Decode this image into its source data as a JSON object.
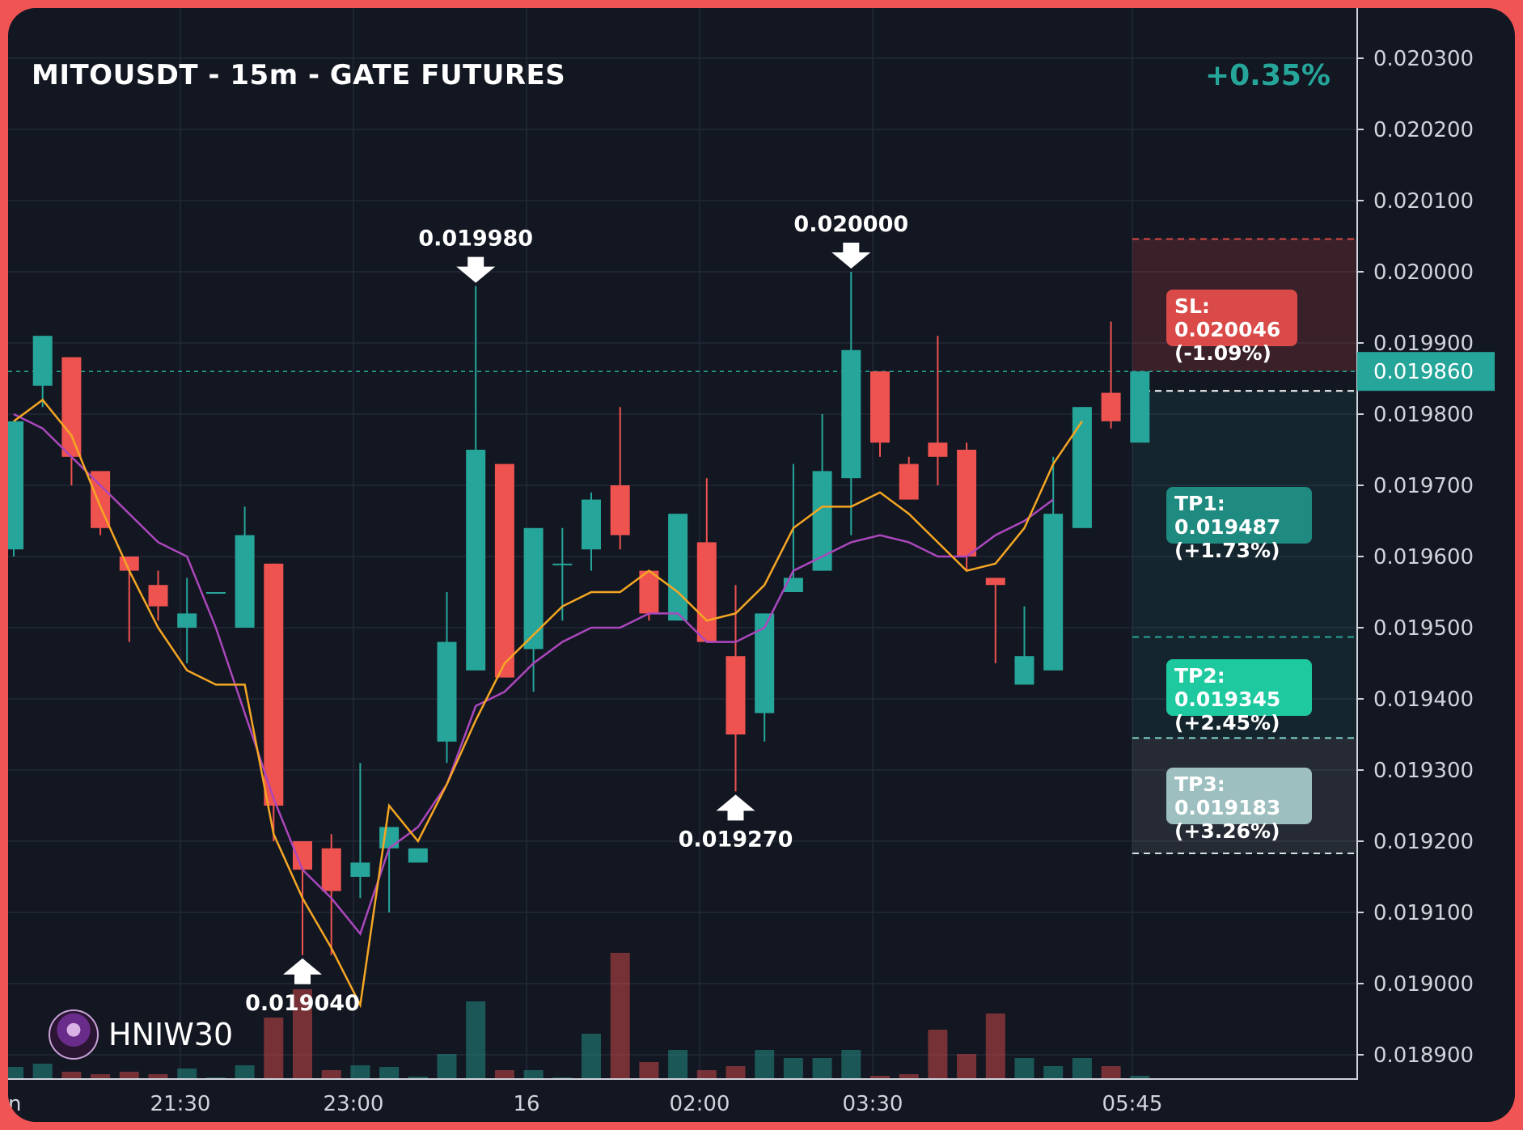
{
  "header": {
    "title": "MITOUSDT - 15m - GATE FUTURES",
    "change": "+0.35%"
  },
  "colors": {
    "up": "#26a69a",
    "down": "#ef5350",
    "ema_fast": "#f5a623",
    "ema_slow": "#ab47bc",
    "background": "#131722",
    "frame": "#f05454"
  },
  "targets": {
    "sl": {
      "line1": "SL: 0.020046",
      "line2": "(-1.09%)",
      "price": 0.020046,
      "color": "#d94a48"
    },
    "tp1": {
      "line1": "TP1: 0.019487",
      "line2": "(+1.73%)",
      "price": 0.019487,
      "color": "#1e8a80"
    },
    "tp2": {
      "line1": "TP2: 0.019345",
      "line2": "(+2.45%)",
      "price": 0.019345,
      "color": "#1ec99f"
    },
    "tp3": {
      "line1": "TP3: 0.019183",
      "line2": "(+3.26%)",
      "price": 0.019183,
      "color": "#9ebfbf"
    }
  },
  "watermark": {
    "text": "HNIW30",
    "icon": "avatar-icon"
  },
  "chart_data": {
    "type": "candlestick",
    "title": "MITOUSDT - 15m - GATE FUTURES",
    "y_ticks": [
      "0.020300",
      "0.020200",
      "0.020100",
      "0.020000",
      "0.019900",
      "0.019800",
      "0.019700",
      "0.019600",
      "0.019500",
      "0.019400",
      "0.019300",
      "0.019200",
      "0.019100",
      "0.019000",
      "0.018900"
    ],
    "ylim": [
      0.01887,
      0.02034
    ],
    "x_ticks": [
      "n",
      "21:30",
      "23:00",
      "16",
      "02:00",
      "03:30",
      "05:45"
    ],
    "current_price": "0.019860",
    "current_price_value": 0.01986,
    "annotations": [
      {
        "label": "0.019980",
        "candle": 16,
        "price": 0.01998,
        "direction": "down"
      },
      {
        "label": "0.020000",
        "candle": 29,
        "price": 0.02,
        "direction": "down"
      },
      {
        "label": "0.019270",
        "candle": 25,
        "price": 0.01927,
        "direction": "up"
      },
      {
        "label": "0.019040",
        "candle": 10,
        "price": 0.01904,
        "direction": "up"
      }
    ],
    "candles": [
      {
        "o": 0.01961,
        "h": 0.01979,
        "l": 0.0196,
        "c": 0.01979,
        "v": 14
      },
      {
        "o": 0.01984,
        "h": 0.01991,
        "l": 0.01981,
        "c": 0.01991,
        "v": 18
      },
      {
        "o": 0.01988,
        "h": 0.01988,
        "l": 0.0197,
        "c": 0.01974,
        "v": 8
      },
      {
        "o": 0.01972,
        "h": 0.01972,
        "l": 0.01963,
        "c": 0.01964,
        "v": 5
      },
      {
        "o": 0.0196,
        "h": 0.0196,
        "l": 0.01948,
        "c": 0.01958,
        "v": 8
      },
      {
        "o": 0.01956,
        "h": 0.01958,
        "l": 0.01951,
        "c": 0.01953,
        "v": 5
      },
      {
        "o": 0.0195,
        "h": 0.01957,
        "l": 0.01945,
        "c": 0.01952,
        "v": 12
      },
      {
        "o": 0.01955,
        "h": 0.01955,
        "l": 0.01955,
        "c": 0.01955,
        "v": 1
      },
      {
        "o": 0.0195,
        "h": 0.01967,
        "l": 0.0195,
        "c": 0.01963,
        "v": 16
      },
      {
        "o": 0.01959,
        "h": 0.01959,
        "l": 0.0192,
        "c": 0.01925,
        "v": 75
      },
      {
        "o": 0.0192,
        "h": 0.0192,
        "l": 0.01904,
        "c": 0.01916,
        "v": 110
      },
      {
        "o": 0.01919,
        "h": 0.01921,
        "l": 0.01904,
        "c": 0.01913,
        "v": 10
      },
      {
        "o": 0.01915,
        "h": 0.01931,
        "l": 0.01912,
        "c": 0.01917,
        "v": 16
      },
      {
        "o": 0.01919,
        "h": 0.01922,
        "l": 0.0191,
        "c": 0.01922,
        "v": 14
      },
      {
        "o": 0.01917,
        "h": 0.01919,
        "l": 0.01917,
        "c": 0.01919,
        "v": 2
      },
      {
        "o": 0.01934,
        "h": 0.01955,
        "l": 0.01931,
        "c": 0.01948,
        "v": 30
      },
      {
        "o": 0.01944,
        "h": 0.01998,
        "l": 0.01944,
        "c": 0.01975,
        "v": 95
      },
      {
        "o": 0.01973,
        "h": 0.01973,
        "l": 0.01943,
        "c": 0.01943,
        "v": 10
      },
      {
        "o": 0.01947,
        "h": 0.01964,
        "l": 0.01941,
        "c": 0.01964,
        "v": 10
      },
      {
        "o": 0.01959,
        "h": 0.01964,
        "l": 0.01951,
        "c": 0.01959,
        "v": 1
      },
      {
        "o": 0.01961,
        "h": 0.01969,
        "l": 0.01958,
        "c": 0.01968,
        "v": 55
      },
      {
        "o": 0.0197,
        "h": 0.01981,
        "l": 0.01961,
        "c": 0.01963,
        "v": 155
      },
      {
        "o": 0.01958,
        "h": 0.01958,
        "l": 0.01951,
        "c": 0.01952,
        "v": 20
      },
      {
        "o": 0.01951,
        "h": 0.01966,
        "l": 0.01951,
        "c": 0.01966,
        "v": 35
      },
      {
        "o": 0.01962,
        "h": 0.01971,
        "l": 0.01948,
        "c": 0.01948,
        "v": 10
      },
      {
        "o": 0.01946,
        "h": 0.01956,
        "l": 0.01927,
        "c": 0.01935,
        "v": 15
      },
      {
        "o": 0.01938,
        "h": 0.01952,
        "l": 0.01934,
        "c": 0.01952,
        "v": 35
      },
      {
        "o": 0.01955,
        "h": 0.01973,
        "l": 0.01955,
        "c": 0.01957,
        "v": 25
      },
      {
        "o": 0.01958,
        "h": 0.0198,
        "l": 0.01958,
        "c": 0.01972,
        "v": 25
      },
      {
        "o": 0.01971,
        "h": 0.02,
        "l": 0.01963,
        "c": 0.01989,
        "v": 35
      },
      {
        "o": 0.01986,
        "h": 0.01986,
        "l": 0.01974,
        "c": 0.01976,
        "v": 3
      },
      {
        "o": 0.01973,
        "h": 0.01974,
        "l": 0.01968,
        "c": 0.01968,
        "v": 5
      },
      {
        "o": 0.01976,
        "h": 0.01991,
        "l": 0.0197,
        "c": 0.01974,
        "v": 60
      },
      {
        "o": 0.01975,
        "h": 0.01976,
        "l": 0.01958,
        "c": 0.0196,
        "v": 30
      },
      {
        "o": 0.01957,
        "h": 0.01957,
        "l": 0.01945,
        "c": 0.01956,
        "v": 80
      },
      {
        "o": 0.01942,
        "h": 0.01953,
        "l": 0.01942,
        "c": 0.01946,
        "v": 25
      },
      {
        "o": 0.01944,
        "h": 0.01974,
        "l": 0.01944,
        "c": 0.01966,
        "v": 15
      },
      {
        "o": 0.01964,
        "h": 0.01981,
        "l": 0.01964,
        "c": 0.01981,
        "v": 25
      },
      {
        "o": 0.01983,
        "h": 0.01993,
        "l": 0.01978,
        "c": 0.01979,
        "v": 15
      },
      {
        "o": 0.01976,
        "h": 0.01986,
        "l": 0.01976,
        "c": 0.01986,
        "v": 3
      }
    ],
    "ema_fast": [
      0.01979,
      0.01982,
      0.01977,
      0.01967,
      0.01958,
      0.0195,
      0.01944,
      0.01942,
      0.01942,
      0.01921,
      0.01912,
      0.01905,
      0.01897,
      0.01925,
      0.0192,
      0.01928,
      0.01937,
      0.01945,
      0.01949,
      0.01953,
      0.01955,
      0.01955,
      0.01958,
      0.01955,
      0.01951,
      0.01952,
      0.01956,
      0.01964,
      0.01967,
      0.01967,
      0.01969,
      0.01966,
      0.01962,
      0.01958,
      0.01959,
      0.01964,
      0.01973,
      0.01979
    ],
    "ema_slow": [
      0.0198,
      0.01978,
      0.01974,
      0.0197,
      0.01966,
      0.01962,
      0.0196,
      0.0195,
      0.01938,
      0.01926,
      0.01916,
      0.01912,
      0.01907,
      0.01919,
      0.01922,
      0.01928,
      0.01939,
      0.01941,
      0.01945,
      0.01948,
      0.0195,
      0.0195,
      0.01952,
      0.01952,
      0.01948,
      0.01948,
      0.0195,
      0.01958,
      0.0196,
      0.01962,
      0.01963,
      0.01962,
      0.0196,
      0.0196,
      0.01963,
      0.01965,
      0.01968
    ]
  }
}
